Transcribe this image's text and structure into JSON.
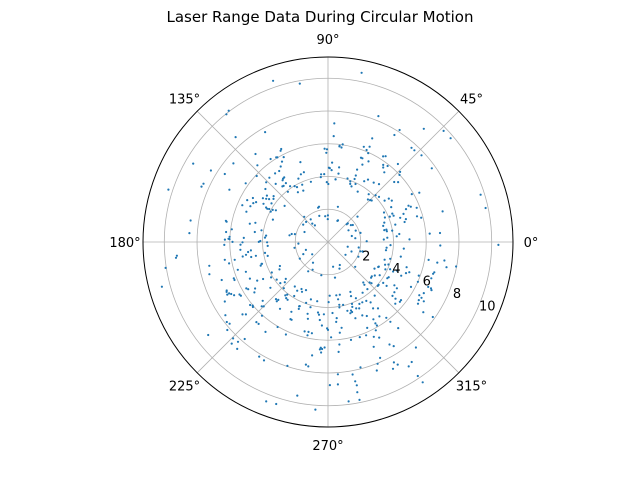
{
  "chart_data": {
    "type": "scatter",
    "projection": "polar",
    "title": "Laser Range Data During Circular Motion",
    "marker_color": "#1f77b4",
    "grid": true,
    "r_lim": [
      0,
      11.3
    ],
    "r_ticks": [
      2,
      4,
      6,
      8,
      10
    ],
    "r_tick_labels": [
      "2",
      "4",
      "6",
      "8",
      "10"
    ],
    "r_label_angle_deg": -22.5,
    "theta_ticks_deg": [
      0,
      45,
      90,
      135,
      180,
      225,
      270,
      315
    ],
    "theta_tick_labels": [
      "0°",
      "45°",
      "90°",
      "135°",
      "180°",
      "225°",
      "270°",
      "315°"
    ],
    "groups": [
      {
        "theta_range_deg": [
          12,
          73
        ],
        "r_range": [
          3.5,
          6.4
        ],
        "density": 1.0
      },
      {
        "theta_range_deg": [
          80,
          100
        ],
        "r_range": [
          3.5,
          6.5
        ],
        "density": 1.0
      },
      {
        "theta_range_deg": [
          105,
          160
        ],
        "r_range": [
          3.4,
          6.4
        ],
        "density": 1.0
      },
      {
        "theta_range_deg": [
          165,
          205
        ],
        "r_range": [
          3.4,
          6.4
        ],
        "density": 1.0
      },
      {
        "theta_range_deg": [
          205,
          345
        ],
        "r_range": [
          3.2,
          7.0
        ],
        "density": 1.0
      },
      {
        "theta_range_deg": [
          345,
          372
        ],
        "r_range": [
          3.4,
          5.2
        ],
        "density": 0.8
      },
      {
        "theta_range_deg": [
          0,
          360
        ],
        "r_range": [
          1.2,
          2.4
        ],
        "density": 0.35
      },
      {
        "theta_range_deg": [
          20,
          70
        ],
        "r_range": [
          6.8,
          8.4
        ],
        "density": 0.3
      },
      {
        "theta_range_deg": [
          110,
          160
        ],
        "r_range": [
          6.8,
          8.6
        ],
        "density": 0.3
      },
      {
        "theta_range_deg": [
          170,
          210
        ],
        "r_range": [
          6.8,
          8.6
        ],
        "density": 0.3
      },
      {
        "theta_range_deg": [
          215,
          330
        ],
        "r_range": [
          7.2,
          9.0
        ],
        "density": 0.45
      },
      {
        "theta_range_deg": [
          -20,
          15
        ],
        "r_range": [
          6.0,
          8.0
        ],
        "density": 0.35
      },
      {
        "theta_range_deg": [
          85,
          95
        ],
        "r_range": [
          6.8,
          7.6
        ],
        "density": 0.3
      },
      {
        "theta_range_deg": [
          0,
          360
        ],
        "r_range": [
          9.0,
          10.6
        ],
        "density": 0.12
      },
      {
        "theta_range_deg": [
          235,
          305
        ],
        "r_range": [
          9.8,
          10.4
        ],
        "density": 0.25
      }
    ]
  }
}
